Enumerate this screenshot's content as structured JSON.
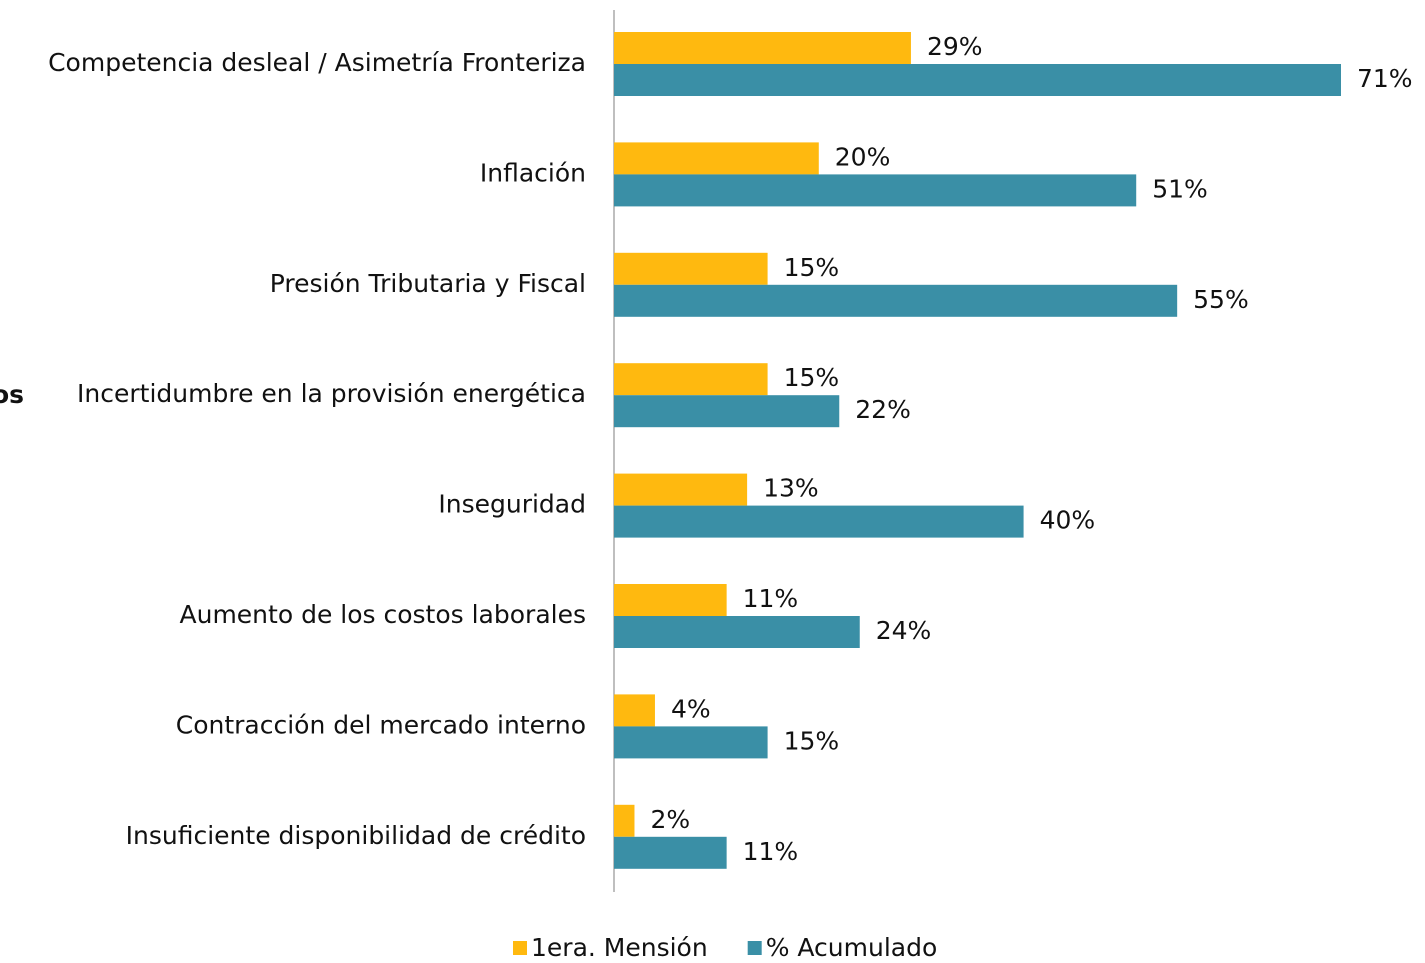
{
  "chart_data": {
    "type": "bar",
    "orientation": "horizontal",
    "ylabel": "os",
    "categories": [
      "Competencia desleal / Asimetría Fronteriza",
      "Inflación",
      "Presión Tributaria y Fiscal",
      "Incertidumbre en la provisión energética",
      "Inseguridad",
      "Aumento de los costos laborales",
      "Contracción del mercado interno",
      "Insuficiente disponibilidad de crédito"
    ],
    "series": [
      {
        "name": "1era. Mensión",
        "color": "#FFB90F",
        "values": [
          29,
          20,
          15,
          15,
          13,
          11,
          4,
          2
        ],
        "value_labels": [
          "29%",
          "20%",
          "15%",
          "15%",
          "13%",
          "11%",
          "4%",
          "2%"
        ]
      },
      {
        "name": "% Acumulado",
        "color": "#3A8FA6",
        "values": [
          71,
          51,
          55,
          22,
          40,
          24,
          15,
          11
        ],
        "value_labels": [
          "71%",
          "51%",
          "55%",
          "22%",
          "40%",
          "24%",
          "15%",
          "11%"
        ]
      }
    ],
    "legend": "bottom"
  }
}
